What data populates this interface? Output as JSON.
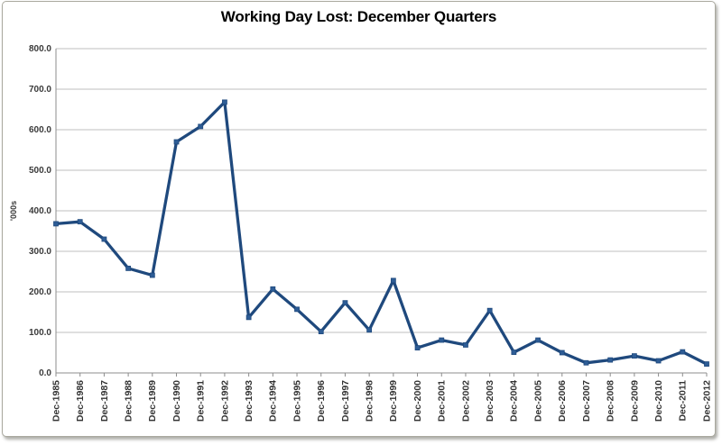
{
  "chart_data": {
    "type": "line",
    "title": "Working Day Lost: December Quarters",
    "ylabel": "'000s",
    "xlabel": "",
    "categories": [
      "Dec-1985",
      "Dec-1986",
      "Dec-1987",
      "Dec-1988",
      "Dec-1989",
      "Dec-1990",
      "Dec-1991",
      "Dec-1992",
      "Dec-1993",
      "Dec-1994",
      "Dec-1995",
      "Dec-1996",
      "Dec-1997",
      "Dec-1998",
      "Dec-1999",
      "Dec-2000",
      "Dec-2001",
      "Dec-2002",
      "Dec-2003",
      "Dec-2004",
      "Dec-2005",
      "Dec-2006",
      "Dec-2007",
      "Dec-2008",
      "Dec-2009",
      "Dec-2010",
      "Dec-2011",
      "Dec-2012"
    ],
    "values": [
      368,
      373,
      330,
      258,
      241,
      570,
      608,
      668,
      137,
      207,
      157,
      102,
      173,
      106,
      228,
      62,
      81,
      69,
      154,
      51,
      81,
      50,
      25,
      32,
      42,
      30,
      52,
      22
    ],
    "ylim": [
      0,
      800
    ],
    "ytick_step": 100,
    "ytick_labels": [
      "0.0",
      "100.0",
      "200.0",
      "300.0",
      "400.0",
      "500.0",
      "600.0",
      "700.0",
      "800.0"
    ],
    "grid": "horizontal",
    "legend": "none",
    "marker": "square",
    "colors": {
      "line": "#1F497D",
      "marker": "#2E5D96",
      "grid": "#BFBFBF",
      "axis": "#8C8C8C"
    }
  }
}
